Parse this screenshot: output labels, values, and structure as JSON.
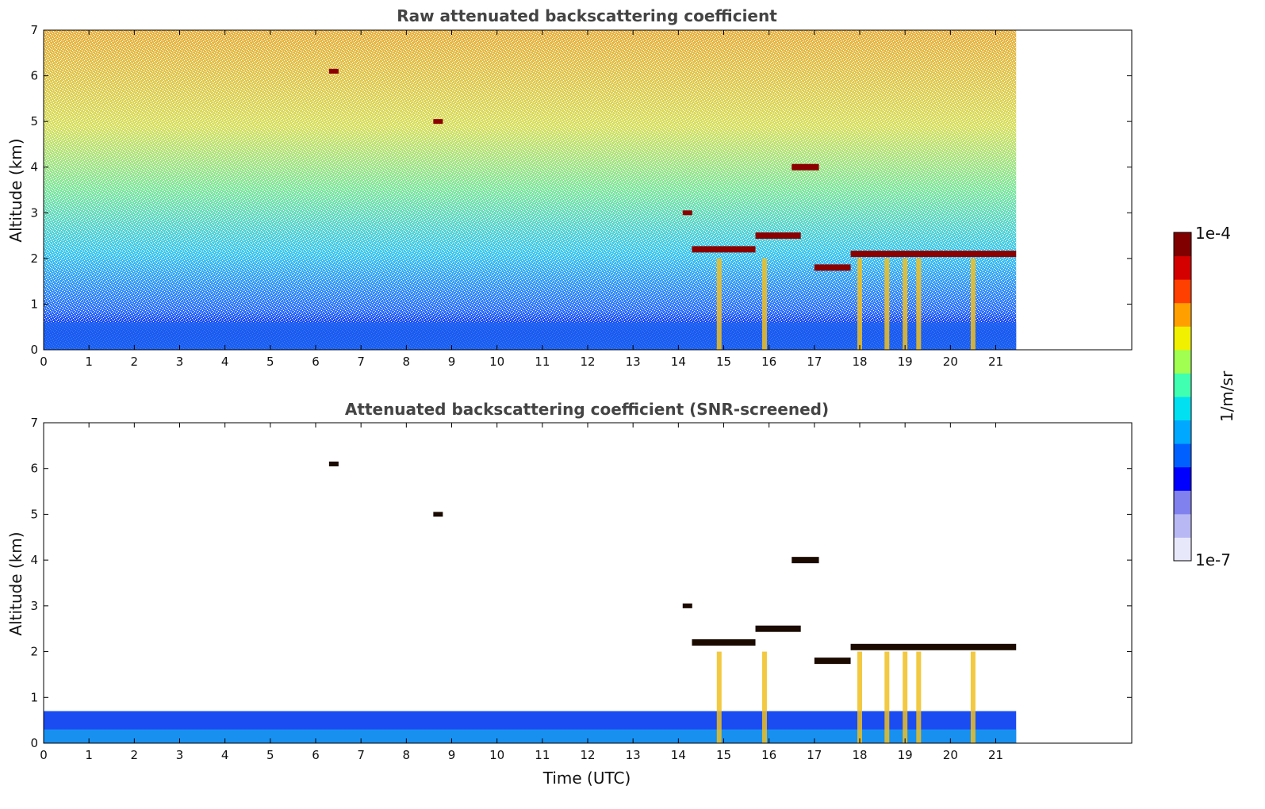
{
  "chart_data": [
    {
      "type": "heatmap",
      "title": "Raw attenuated backscattering coefficient",
      "xlabel": "",
      "ylabel": "Altitude (km)",
      "xlim": [
        0,
        24
      ],
      "ylim": [
        0,
        7
      ],
      "x_ticks": [
        "0",
        "1",
        "2",
        "3",
        "4",
        "5",
        "6",
        "7",
        "8",
        "9",
        "10",
        "11",
        "12",
        "13",
        "14",
        "15",
        "16",
        "17",
        "18",
        "19",
        "20",
        "21"
      ],
      "y_ticks": [
        "0",
        "1",
        "2",
        "3",
        "4",
        "5",
        "6",
        "7"
      ],
      "data_end_time": 21.45,
      "features": {
        "boundary_layer_top_km": 0.6,
        "cloud_layers": [
          {
            "t_start": 14.3,
            "t_end": 15.7,
            "alt_km": 2.2
          },
          {
            "t_start": 15.7,
            "t_end": 16.7,
            "alt_km": 2.5
          },
          {
            "t_start": 16.5,
            "t_end": 17.1,
            "alt_km": 4.0
          },
          {
            "t_start": 17.0,
            "t_end": 17.8,
            "alt_km": 1.8
          },
          {
            "t_start": 17.8,
            "t_end": 21.45,
            "alt_km": 2.1
          }
        ],
        "isolated_features": [
          {
            "t": 6.4,
            "alt_km": 6.1
          },
          {
            "t": 8.7,
            "alt_km": 5.0
          },
          {
            "t": 14.2,
            "alt_km": 3.0
          }
        ],
        "precipitation_shafts": [
          14.9,
          15.9,
          18.0,
          18.6,
          19.0,
          19.3,
          20.5
        ]
      }
    },
    {
      "type": "heatmap",
      "title": "Attenuated backscattering coefficient (SNR-screened)",
      "xlabel": "Time (UTC)",
      "ylabel": "Altitude (km)",
      "xlim": [
        0,
        24
      ],
      "ylim": [
        0,
        7
      ],
      "x_ticks": [
        "0",
        "1",
        "2",
        "3",
        "4",
        "5",
        "6",
        "7",
        "8",
        "9",
        "10",
        "11",
        "12",
        "13",
        "14",
        "15",
        "16",
        "17",
        "18",
        "19",
        "20",
        "21"
      ],
      "y_ticks": [
        "0",
        "1",
        "2",
        "3",
        "4",
        "5",
        "6",
        "7"
      ],
      "data_end_time": 21.45,
      "features": {
        "boundary_layer_top_km": 0.7,
        "cloud_layers": [
          {
            "t_start": 14.3,
            "t_end": 15.7,
            "alt_km": 2.2
          },
          {
            "t_start": 15.7,
            "t_end": 16.7,
            "alt_km": 2.5
          },
          {
            "t_start": 16.5,
            "t_end": 17.1,
            "alt_km": 4.0
          },
          {
            "t_start": 17.0,
            "t_end": 17.8,
            "alt_km": 1.8
          },
          {
            "t_start": 17.8,
            "t_end": 21.45,
            "alt_km": 2.1
          }
        ],
        "isolated_features": [
          {
            "t": 6.4,
            "alt_km": 6.1
          },
          {
            "t": 8.7,
            "alt_km": 5.0
          },
          {
            "t": 14.2,
            "alt_km": 3.0
          }
        ],
        "precipitation_shafts": [
          14.9,
          15.9,
          18.0,
          18.6,
          19.0,
          19.3,
          20.5
        ]
      }
    }
  ],
  "colorbar": {
    "max_label": "1e-4",
    "min_label": "1e-7",
    "unit": "1/m/sr",
    "colors": [
      "#e8e8fb",
      "#b8b8f4",
      "#8080ee",
      "#0000ff",
      "#0060ff",
      "#00a8ff",
      "#00e0f0",
      "#40ffb0",
      "#a0ff50",
      "#f0f000",
      "#ffa000",
      "#ff4000",
      "#d40000",
      "#800000"
    ]
  },
  "colors": {
    "title": "#444444",
    "axis": "#000000",
    "cloud_core": "#8b0000",
    "cloud_screened": "#1a0a00"
  }
}
